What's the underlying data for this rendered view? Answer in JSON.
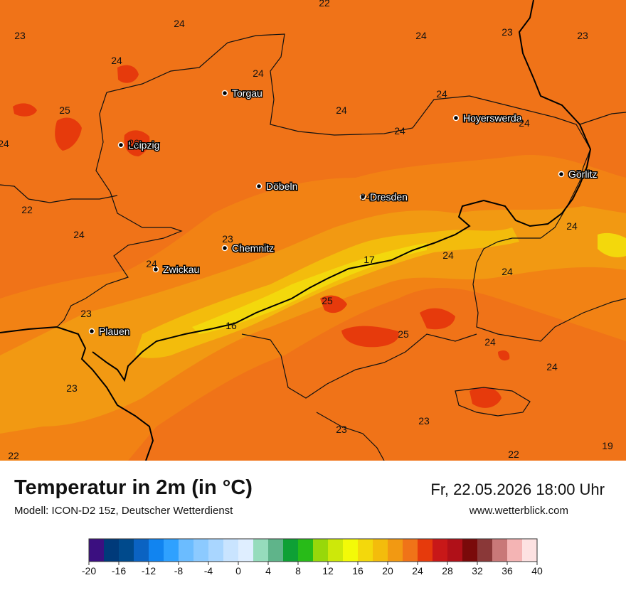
{
  "header": {
    "title": "Temperatur in 2m (in °C)",
    "model": "Modell: ICON-D2 15z, Deutscher Wetterdienst",
    "datetime": "Fr, 22.05.2026 18:00 Uhr",
    "site": "www.wetterblick.com"
  },
  "map": {
    "cities": [
      {
        "name": "Torgau"
      },
      {
        "name": "Hoyerswerda"
      },
      {
        "name": "Leipzig"
      },
      {
        "name": "Görlitz"
      },
      {
        "name": "Döbeln"
      },
      {
        "name": "Dresden"
      },
      {
        "name": "Chemnitz"
      },
      {
        "name": "Zwickau"
      },
      {
        "name": "Plauen"
      }
    ],
    "temperature_labels": [
      "22",
      "23",
      "24",
      "24",
      "23",
      "23",
      "24",
      "24",
      "24",
      "25",
      "24",
      "24",
      "24",
      "26",
      "24",
      "22",
      "24",
      "24",
      "24",
      "23",
      "17",
      "24",
      "24",
      "25",
      "23",
      "16",
      "25",
      "24",
      "24",
      "23",
      "23",
      "23",
      "22",
      "22",
      "19",
      "24"
    ]
  },
  "legend": {
    "ticks": [
      "-20",
      "-16",
      "-12",
      "-8",
      "-4",
      "0",
      "4",
      "8",
      "12",
      "16",
      "20",
      "24",
      "28",
      "32",
      "36",
      "40"
    ],
    "colors": [
      "#3b0f80",
      "#003a7a",
      "#004a8c",
      "#0b63c2",
      "#1184f0",
      "#2fa1ff",
      "#6bbcff",
      "#8ccaff",
      "#a9d6ff",
      "#c9e4ff",
      "#dfeeff",
      "#96dcbc",
      "#5fb48a",
      "#0ea035",
      "#28bb18",
      "#98d80a",
      "#cde80a",
      "#f3fa08",
      "#f3d80c",
      "#f3bc0c",
      "#f29912",
      "#f07318",
      "#e63a0c",
      "#c81818",
      "#b01018",
      "#7a0a0a",
      "#8a3838",
      "#c87878",
      "#f4b4b4",
      "#fde2e2"
    ]
  }
}
